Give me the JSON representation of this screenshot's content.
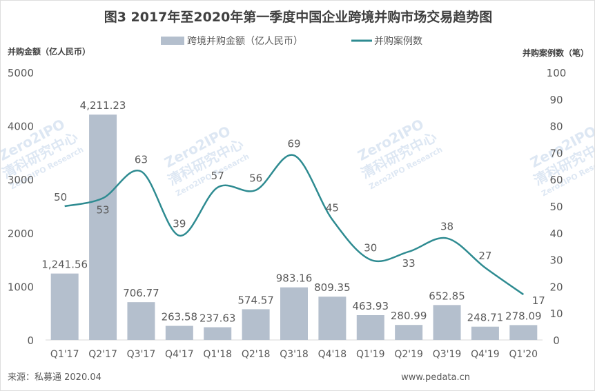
{
  "chart_data": {
    "type": "bar",
    "title": "图3 2017年至2020年第一季度中国企业跨境并购市场交易趋势图",
    "categories": [
      "Q1'17",
      "Q2'17",
      "Q3'17",
      "Q4'17",
      "Q1'18",
      "Q2'18",
      "Q3'18",
      "Q4'18",
      "Q1'19",
      "Q2'19",
      "Q3'19",
      "Q4'19",
      "Q1'20"
    ],
    "series": [
      {
        "name": "跨境并购金额（亿人民币）",
        "type": "bar",
        "axis": "left",
        "color": "#b4bfcd",
        "values": [
          1241.56,
          4211.23,
          706.77,
          263.58,
          237.63,
          574.57,
          983.16,
          809.35,
          463.93,
          280.99,
          652.85,
          248.71,
          278.09
        ],
        "labels": [
          "1,241.56",
          "4,211.23",
          "706.77",
          "263.58",
          "237.63",
          "574.57",
          "983.16",
          "809.35",
          "463.93",
          "280.99",
          "652.85",
          "248.71",
          "278.09"
        ]
      },
      {
        "name": "并购案例数",
        "type": "line",
        "axis": "right",
        "color": "#2e8b91",
        "values": [
          50,
          53,
          63,
          39,
          57,
          56,
          69,
          45,
          30,
          33,
          38,
          27,
          17
        ],
        "labels": [
          "50",
          "53",
          "63",
          "39",
          "57",
          "56",
          "69",
          "45",
          "30",
          "33",
          "38",
          "27",
          "17"
        ]
      }
    ],
    "ylabel": "并购金额（亿人民币）",
    "y2label": "并购案例数（笔）",
    "ylim": [
      0,
      5000
    ],
    "y2lim": [
      0,
      100
    ],
    "yticks": [
      "0",
      "1000",
      "2000",
      "3000",
      "4000",
      "5000"
    ],
    "y2ticks": [
      "0",
      "10",
      "20",
      "30",
      "40",
      "50",
      "60",
      "70",
      "80",
      "90",
      "100"
    ],
    "grid": false,
    "legend_position": "top-center"
  },
  "footer": {
    "source": "来源：私募通 2020.04",
    "website": "www.pedata.cn"
  },
  "watermark": {
    "brand": "Zero2IPO",
    "name": "清科研究中心",
    "sub": "Zero2IPO Research"
  }
}
